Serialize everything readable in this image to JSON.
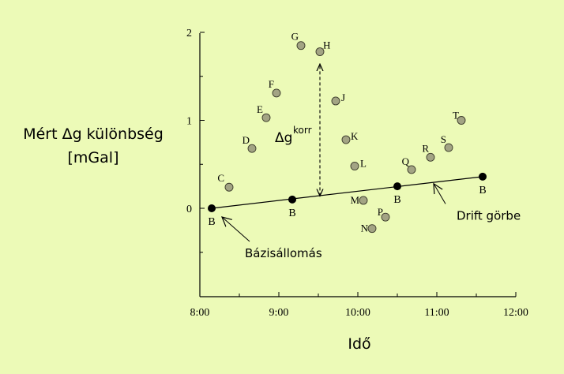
{
  "chart_data": {
    "type": "scatter",
    "xlabel": "Idő",
    "ylabel_line1": "Mért Δg különbség",
    "ylabel_line2": "[mGal]",
    "x_ticks": [
      "8:00",
      "9:00",
      "10:00",
      "11:00",
      "12:00"
    ],
    "x_range_hours": [
      8,
      12
    ],
    "y_ticks": [
      "0",
      "1",
      "2"
    ],
    "y_range": [
      -0.9,
      2.0
    ],
    "base_points": [
      {
        "label": "B",
        "x": 8.15,
        "y": 0.0
      },
      {
        "label": "B",
        "x": 9.17,
        "y": 0.1
      },
      {
        "label": "B",
        "x": 10.5,
        "y": 0.25
      },
      {
        "label": "B",
        "x": 11.58,
        "y": 0.36
      }
    ],
    "survey_points": [
      {
        "label": "C",
        "x": 8.37,
        "y": 0.24
      },
      {
        "label": "D",
        "x": 8.66,
        "y": 0.68
      },
      {
        "label": "E",
        "x": 8.84,
        "y": 1.03
      },
      {
        "label": "F",
        "x": 8.97,
        "y": 1.31
      },
      {
        "label": "G",
        "x": 9.28,
        "y": 1.85
      },
      {
        "label": "H",
        "x": 9.52,
        "y": 1.78
      },
      {
        "label": "J",
        "x": 9.72,
        "y": 1.22
      },
      {
        "label": "K",
        "x": 9.85,
        "y": 0.78
      },
      {
        "label": "L",
        "x": 9.96,
        "y": 0.48
      },
      {
        "label": "M",
        "x": 10.07,
        "y": 0.09
      },
      {
        "label": "N",
        "x": 10.18,
        "y": -0.23
      },
      {
        "label": "P",
        "x": 10.35,
        "y": -0.1
      },
      {
        "label": "Q",
        "x": 10.68,
        "y": 0.44
      },
      {
        "label": "R",
        "x": 10.92,
        "y": 0.58
      },
      {
        "label": "S",
        "x": 11.15,
        "y": 0.69
      },
      {
        "label": "T",
        "x": 11.31,
        "y": 1.0
      }
    ],
    "drift_line": {
      "x": [
        8.15,
        11.58
      ],
      "y": [
        0.0,
        0.36
      ]
    },
    "correction": {
      "label": "Δg",
      "superscript": "korr",
      "x": 9.52,
      "y_top": 1.64,
      "y_bottom": 0.14
    },
    "annotations": {
      "base_station": "Bázisállomás",
      "drift_curve": "Drift görbe"
    },
    "colors": {
      "background": "#ecfab7",
      "survey_fill": "#a3a484",
      "base_fill": "#000000"
    }
  }
}
